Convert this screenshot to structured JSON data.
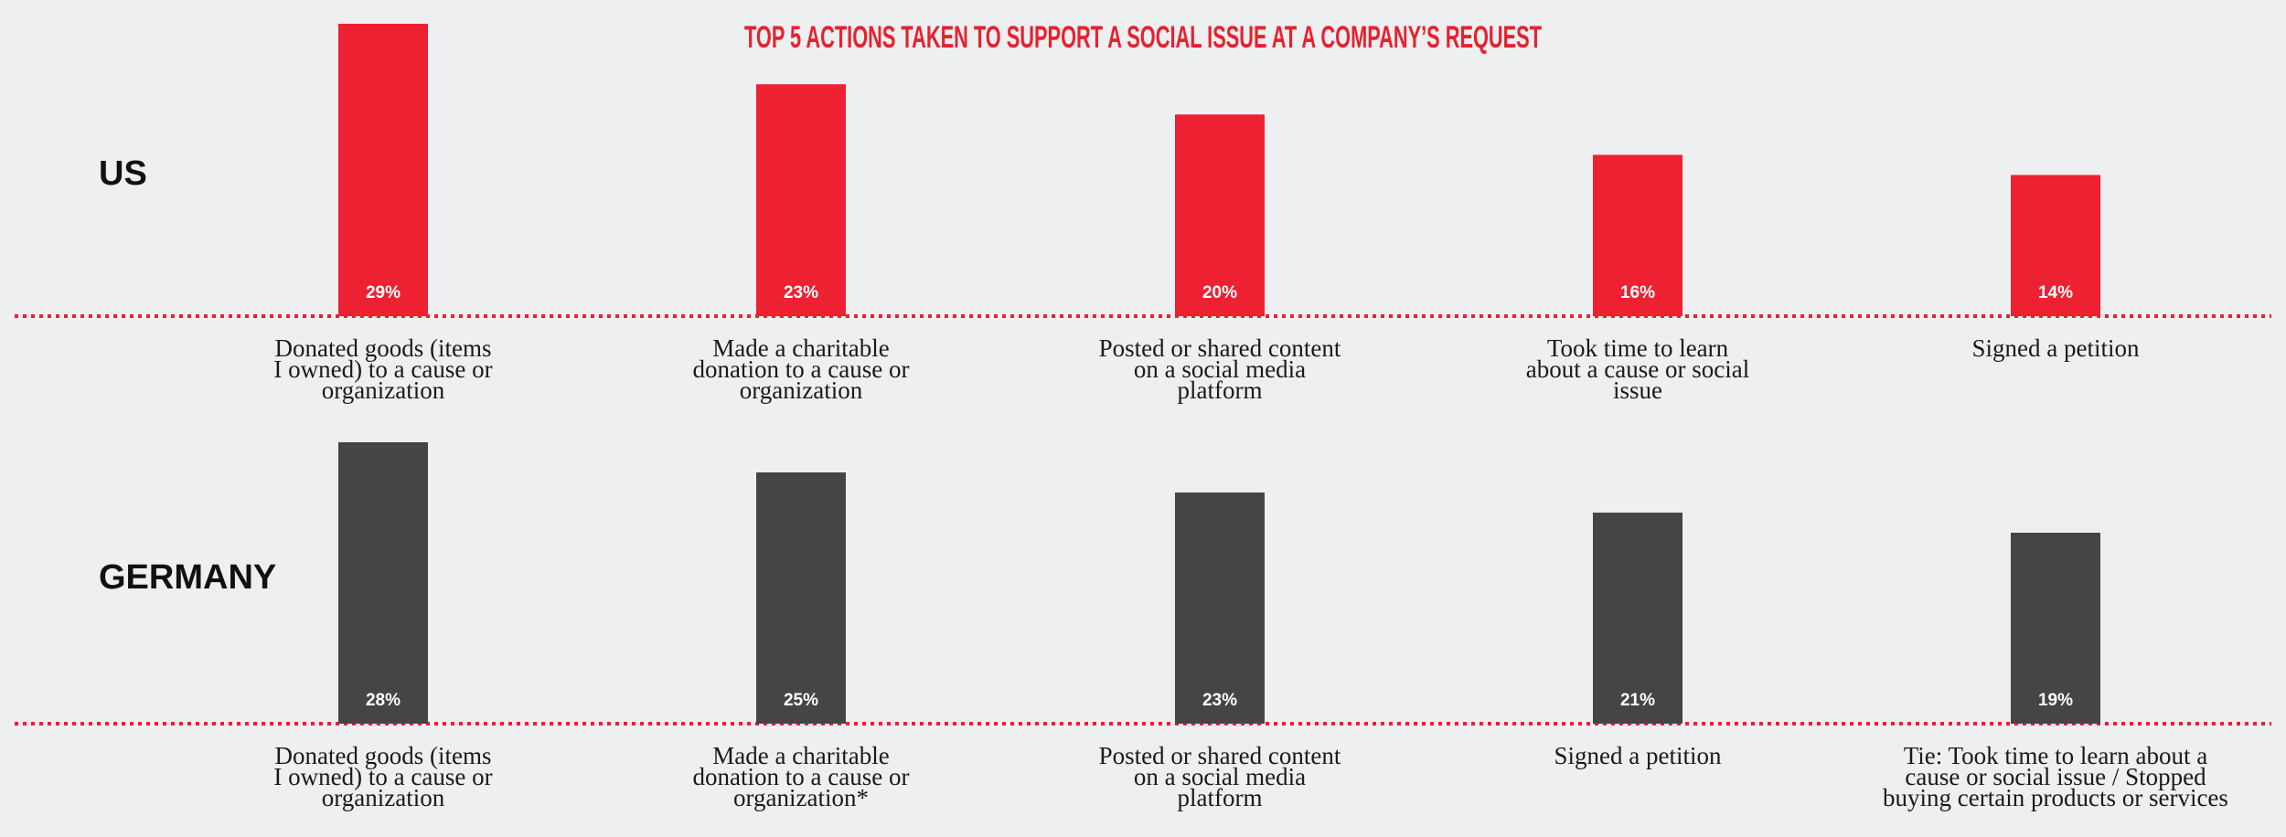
{
  "title": "TOP 5 ACTIONS TAKEN TO SUPPORT A SOCIAL ISSUE AT A COMPANY’S REQUEST",
  "colors": {
    "background": "#eeeff0",
    "title": "#e8202f",
    "us_bar": "#ed2131",
    "germany_bar": "#454547",
    "baseline_dots": "#e8202f"
  },
  "chart_data": [
    {
      "type": "bar",
      "panel": "US",
      "title": "US",
      "categories": [
        [
          "Donated goods (items",
          "I owned) to a cause or",
          "organization"
        ],
        [
          "Made a charitable",
          "donation to a cause or",
          "organization"
        ],
        [
          "Posted or shared content",
          "on a social media",
          "platform"
        ],
        [
          "Took time to learn",
          "about a cause or social",
          "issue"
        ],
        [
          "Signed a petition"
        ]
      ],
      "values": [
        29,
        23,
        20,
        16,
        14
      ],
      "value_labels": [
        "29%",
        "23%",
        "20%",
        "16%",
        "14%"
      ],
      "unit": "%",
      "ylim": [
        0,
        29
      ],
      "color": "#ed2131"
    },
    {
      "type": "bar",
      "panel": "Germany",
      "title": "GERMANY",
      "categories": [
        [
          "Donated goods (items",
          "I owned) to a cause or",
          "organization"
        ],
        [
          "Made a charitable",
          "donation to a cause or",
          "organization*"
        ],
        [
          "Posted or shared content",
          "on a social media",
          "platform"
        ],
        [
          "Signed a petition"
        ],
        [
          "Tie: Took time to learn about a",
          "cause or social issue / Stopped",
          "buying certain products or services"
        ]
      ],
      "values": [
        28,
        25,
        23,
        21,
        19
      ],
      "value_labels": [
        "28%",
        "25%",
        "23%",
        "21%",
        "19%"
      ],
      "unit": "%",
      "ylim": [
        0,
        28
      ],
      "color": "#454547"
    }
  ]
}
